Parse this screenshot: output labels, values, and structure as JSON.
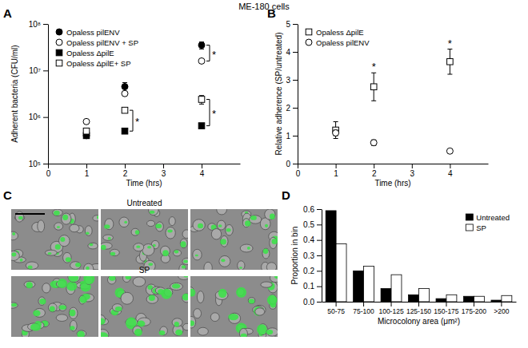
{
  "title": "ME-180 cells",
  "chart_data": [
    {
      "panel": "A",
      "type": "scatter",
      "log": "y",
      "x": [
        1,
        2,
        4
      ],
      "xlim": [
        0,
        5
      ],
      "xticks": [
        0,
        1,
        2,
        3,
        4
      ],
      "ylim": [
        100000,
        100000000
      ],
      "yticks": [
        {
          "value": 100000,
          "label": "10⁵"
        },
        {
          "value": 1000000,
          "label": "10⁶"
        },
        {
          "value": 10000000,
          "label": "10⁷"
        },
        {
          "value": 100000000,
          "label": "10⁸"
        }
      ],
      "xlabel": "Time (hrs)",
      "ylabel": "Adherent bacteria (CFU/ml)",
      "legend": "upper left",
      "series": [
        {
          "name": "Opaless pilENV",
          "color": "#000000",
          "marker": "circle",
          "values": [
            400000,
            4500000,
            35000000
          ],
          "errors": [
            40000,
            1000000,
            6000000
          ]
        },
        {
          "name": "Opaless pilENV + SP",
          "color": "#ffffff",
          "marker": "circle",
          "values": [
            800000,
            3200000,
            16000000
          ],
          "errors": [
            60000,
            300000,
            1500000
          ]
        },
        {
          "name": "Opaless ΔpilE",
          "color": "#000000",
          "marker": "square",
          "values": [
            400000,
            500000,
            650000
          ],
          "errors": [
            30000,
            40000,
            60000
          ]
        },
        {
          "name": "Opaless ΔpilE+ SP",
          "color": "#ffffff",
          "marker": "square",
          "values": [
            500000,
            1400000,
            2400000
          ],
          "errors": [
            40000,
            150000,
            500000
          ]
        }
      ],
      "significance": [
        {
          "text": "*",
          "x": 2,
          "series": [
            2,
            3
          ]
        },
        {
          "text": "*",
          "x": 4,
          "series": [
            0,
            1
          ]
        },
        {
          "text": "*",
          "x": 4,
          "series": [
            2,
            3
          ]
        }
      ]
    },
    {
      "panel": "B",
      "type": "scatter",
      "x": [
        1,
        2,
        4
      ],
      "xlim": [
        0,
        5
      ],
      "xticks": [
        0,
        1,
        2,
        3,
        4
      ],
      "ylim": [
        0,
        5
      ],
      "yticks": [
        0,
        1,
        2,
        3,
        4,
        5
      ],
      "xlabel": "Time (hrs)",
      "ylabel": "Relative adherence (SP/untreated)",
      "legend": "upper left",
      "series": [
        {
          "name": "Opaless ΔpilE",
          "color": "#ffffff",
          "marker": "square",
          "values": [
            1.2,
            2.75,
            3.65
          ],
          "errors": [
            0.3,
            0.5,
            0.45
          ]
        },
        {
          "name": "Opaless pilENV",
          "color": "#ffffff",
          "marker": "circle",
          "values": [
            1.1,
            0.75,
            0.45
          ],
          "errors": [
            0.1,
            0.1,
            0.05
          ]
        }
      ],
      "significance": [
        {
          "text": "*",
          "x": 2,
          "series": [
            0
          ]
        },
        {
          "text": "*",
          "x": 4,
          "series": [
            0
          ]
        }
      ]
    },
    {
      "panel": "D",
      "type": "bar",
      "categories": [
        "50-75",
        "75-100",
        "100-125",
        "125-150",
        "150-175",
        "175-200",
        ">200"
      ],
      "ylim": [
        0,
        0.6
      ],
      "yticks": [
        {
          "value": 0,
          "label": "0.0"
        },
        0.1,
        0.2,
        0.3,
        0.4,
        0.5,
        0.6
      ],
      "xlabel": "Microcolony area (μm²)",
      "ylabel": "Proportion in bin",
      "legend": "upper right",
      "series": [
        {
          "name": "Untreated",
          "color": "#000000",
          "values": [
            0.59,
            0.2,
            0.085,
            0.045,
            0.02,
            0.035,
            0.01
          ]
        },
        {
          "name": "SP",
          "color": "#ffffff",
          "values": [
            0.375,
            0.23,
            0.175,
            0.085,
            0.045,
            0.035,
            0.04
          ]
        }
      ]
    }
  ],
  "micrographs": {
    "panel": "C",
    "labels": [
      "Untreated",
      "SP"
    ]
  }
}
